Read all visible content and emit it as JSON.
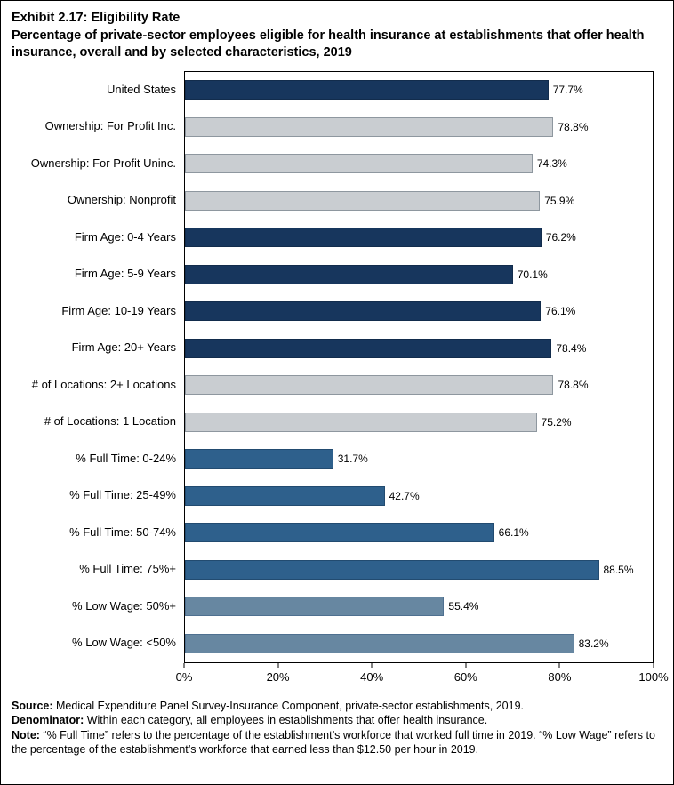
{
  "title": {
    "line1": "Exhibit 2.17: Eligibility Rate",
    "line2": "Percentage of private-sector employees eligible for health insurance at establishments that offer health insurance, overall and by selected characteristics, 2019"
  },
  "chart_data": {
    "type": "bar",
    "orientation": "horizontal",
    "title": "Exhibit 2.17: Eligibility Rate",
    "xlabel": "",
    "ylabel": "",
    "xlim": [
      0,
      100
    ],
    "xtick_values": [
      0,
      20,
      40,
      60,
      80,
      100
    ],
    "xtick_labels": [
      "0%",
      "20%",
      "40%",
      "60%",
      "80%",
      "100%"
    ],
    "grid": false,
    "legend": "none",
    "bars": [
      {
        "label": "United States",
        "value": 77.7,
        "display": "77.7%",
        "group": "united-states",
        "color": "#17365d",
        "border": "#122c4c"
      },
      {
        "label": "Ownership: For Profit Inc.",
        "value": 78.8,
        "display": "78.8%",
        "group": "ownership",
        "color": "#c9cdd1",
        "border": "#8e979f"
      },
      {
        "label": "Ownership: For Profit Uninc.",
        "value": 74.3,
        "display": "74.3%",
        "group": "ownership",
        "color": "#c9cdd1",
        "border": "#8e979f"
      },
      {
        "label": "Ownership: Nonprofit",
        "value": 75.9,
        "display": "75.9%",
        "group": "ownership",
        "color": "#c9cdd1",
        "border": "#8e979f"
      },
      {
        "label": "Firm Age: 0-4 Years",
        "value": 76.2,
        "display": "76.2%",
        "group": "firm-age",
        "color": "#17365d",
        "border": "#122c4c"
      },
      {
        "label": "Firm Age: 5-9 Years",
        "value": 70.1,
        "display": "70.1%",
        "group": "firm-age",
        "color": "#17365d",
        "border": "#122c4c"
      },
      {
        "label": "Firm Age: 10-19 Years",
        "value": 76.1,
        "display": "76.1%",
        "group": "firm-age",
        "color": "#17365d",
        "border": "#122c4c"
      },
      {
        "label": "Firm Age: 20+ Years",
        "value": 78.4,
        "display": "78.4%",
        "group": "firm-age",
        "color": "#17365d",
        "border": "#122c4c"
      },
      {
        "label": "# of Locations: 2+ Locations",
        "value": 78.8,
        "display": "78.8%",
        "group": "locations",
        "color": "#c9cdd1",
        "border": "#8e979f"
      },
      {
        "label": "# of Locations: 1 Location",
        "value": 75.2,
        "display": "75.2%",
        "group": "locations",
        "color": "#c9cdd1",
        "border": "#8e979f"
      },
      {
        "label": "% Full Time: 0-24%",
        "value": 31.7,
        "display": "31.7%",
        "group": "full-time",
        "color": "#2e608c",
        "border": "#224b70"
      },
      {
        "label": "% Full Time: 25-49%",
        "value": 42.7,
        "display": "42.7%",
        "group": "full-time",
        "color": "#2e608c",
        "border": "#224b70"
      },
      {
        "label": "% Full Time: 50-74%",
        "value": 66.1,
        "display": "66.1%",
        "group": "full-time",
        "color": "#2e608c",
        "border": "#224b70"
      },
      {
        "label": "% Full Time: 75%+",
        "value": 88.5,
        "display": "88.5%",
        "group": "full-time",
        "color": "#2e608c",
        "border": "#224b70"
      },
      {
        "label": "% Low Wage: 50%+",
        "value": 55.4,
        "display": "55.4%",
        "group": "low-wage",
        "color": "#6787a1",
        "border": "#4f7090"
      },
      {
        "label": "% Low Wage: <50%",
        "value": 83.2,
        "display": "83.2%",
        "group": "low-wage",
        "color": "#6787a1",
        "border": "#4f7090"
      }
    ]
  },
  "footer": {
    "source_label": "Source:",
    "source_text": " Medical Expenditure Panel Survey-Insurance Component, private-sector establishments, 2019.",
    "denominator_label": "Denominator:",
    "denominator_text": " Within each category, all employees in establishments that offer health insurance.",
    "note_label": "Note:",
    "note_text": " “% Full Time” refers to the percentage of the establishment’s workforce that worked full time in 2019. “% Low Wage” refers to the percentage of the establishment’s workforce that earned less than $12.50 per hour in 2019."
  }
}
